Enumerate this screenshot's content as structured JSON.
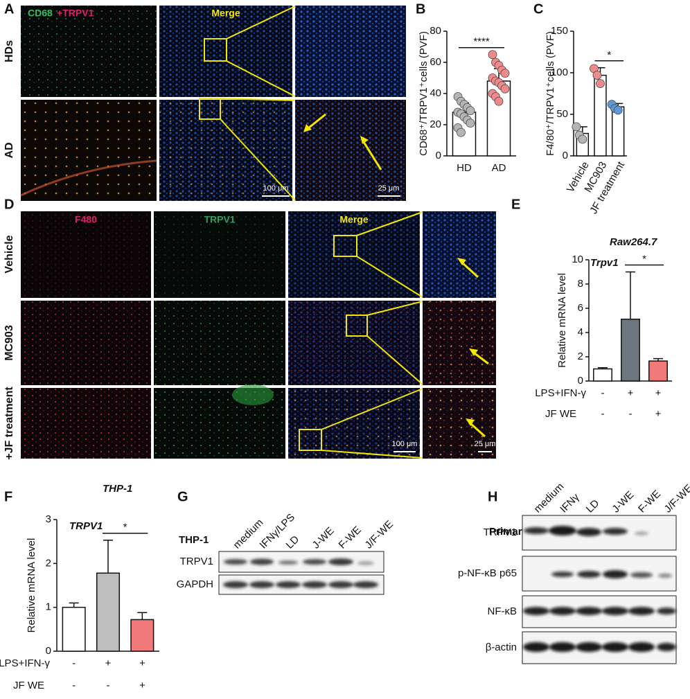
{
  "panel_labels": [
    "A",
    "B",
    "C",
    "D",
    "E",
    "F",
    "G",
    "H"
  ],
  "panel_a": {
    "stain_1": "CD68",
    "stain_2": "+TRPV1",
    "merge": "Merge",
    "rows": [
      "HDs",
      "AD"
    ],
    "scale_bars": [
      "100 μm",
      "25 μm"
    ]
  },
  "panel_d": {
    "columns": [
      "F480",
      "TRPV1",
      "Merge"
    ],
    "rows": [
      "Vehicle",
      "MC903",
      "+JF treatment"
    ],
    "scale_bars": [
      "100 μm",
      "25 μm"
    ]
  },
  "panel_g": {
    "cell_line": "THP-1",
    "lanes": [
      "medium",
      "IFNγ/LPS",
      "LD",
      "J-WE",
      "F-WE",
      "J/F-WE"
    ],
    "bands": [
      "TRPV1",
      "GAPDH"
    ]
  },
  "panel_h": {
    "cell_type": "Primary PM",
    "lanes": [
      "medium",
      "IFNγ",
      "LD",
      "J-WE",
      "F-WE",
      "J/F-WE"
    ],
    "bands": [
      "TRPV1",
      "p-NF-κB p65",
      "NF-κB",
      "β-actin"
    ]
  },
  "chart_data": [
    {
      "type": "bar",
      "y_label": "CD68⁺/TRPV1⁺cells (PVF)",
      "categories": [
        "HD",
        "AD"
      ],
      "values": [
        28,
        48
      ],
      "errors": [
        6,
        8
      ],
      "bar_colors": [
        "#ffffff",
        "#ffffff"
      ],
      "point_colors": [
        "#b5b5b5",
        "#f08a8a"
      ],
      "points": [
        [
          38,
          35,
          33,
          31,
          29,
          28,
          27,
          25,
          23,
          21,
          18,
          15
        ],
        [
          65,
          60,
          58,
          55,
          53,
          50,
          48,
          47,
          45,
          43,
          40,
          38,
          35
        ]
      ],
      "ylim": [
        0,
        80
      ],
      "yticks": [
        0,
        20,
        40,
        60,
        80
      ],
      "significance": {
        "label": "****",
        "categories": [
          "HD",
          "AD"
        ]
      }
    },
    {
      "type": "bar",
      "y_label": "F4/80⁺/TRPV1⁺cells (PVF)",
      "categories": [
        "Vehicle",
        "MC903",
        "JF treatment"
      ],
      "values": [
        27,
        97,
        59
      ],
      "errors": [
        8,
        9,
        4
      ],
      "bar_colors": [
        "#ffffff",
        "#ffffff",
        "#ffffff"
      ],
      "point_colors": [
        "#b5b5b5",
        "#f08a8a",
        "#5b9bd5"
      ],
      "points": [
        [
          35,
          25,
          20
        ],
        [
          105,
          97,
          87
        ],
        [
          62,
          57,
          55
        ]
      ],
      "ylim": [
        0,
        150
      ],
      "yticks": [
        0,
        50,
        100,
        150
      ],
      "significance": {
        "label": "*",
        "categories": [
          "MC903",
          "JF treatment"
        ]
      }
    },
    {
      "type": "bar",
      "title": "Raw264.7",
      "gene": "Trpv1",
      "y_label": "Relative mRNA level",
      "values": [
        1,
        5.1,
        1.65
      ],
      "errors": [
        0.1,
        3.9,
        0.2
      ],
      "bar_colors": [
        "#ffffff",
        "#6d7780",
        "#f07a7a"
      ],
      "ylim": [
        0,
        10
      ],
      "yticks": [
        0,
        2,
        4,
        6,
        8,
        10
      ],
      "conditions": [
        {
          "name": "LPS+IFN-γ",
          "marks": [
            "-",
            "+",
            "+"
          ]
        },
        {
          "name": "JF WE",
          "marks": [
            "-",
            "-",
            "+"
          ]
        }
      ],
      "significance": {
        "label": "*",
        "bars": [
          1,
          2
        ]
      }
    },
    {
      "type": "bar",
      "title": "THP-1",
      "gene": "TRPV1",
      "y_label": "Relative mRNA level",
      "values": [
        1,
        1.78,
        0.72
      ],
      "errors": [
        0.1,
        0.75,
        0.16
      ],
      "bar_colors": [
        "#ffffff",
        "#bdbdbd",
        "#f07a7a"
      ],
      "ylim": [
        0,
        3
      ],
      "yticks": [
        0,
        1,
        2,
        3
      ],
      "conditions": [
        {
          "name": "LPS+IFN-γ",
          "marks": [
            "-",
            "+",
            "+"
          ]
        },
        {
          "name": "JF WE",
          "marks": [
            "-",
            "-",
            "+"
          ]
        }
      ],
      "significance": {
        "label": "*",
        "bars": [
          1,
          2
        ]
      }
    }
  ]
}
